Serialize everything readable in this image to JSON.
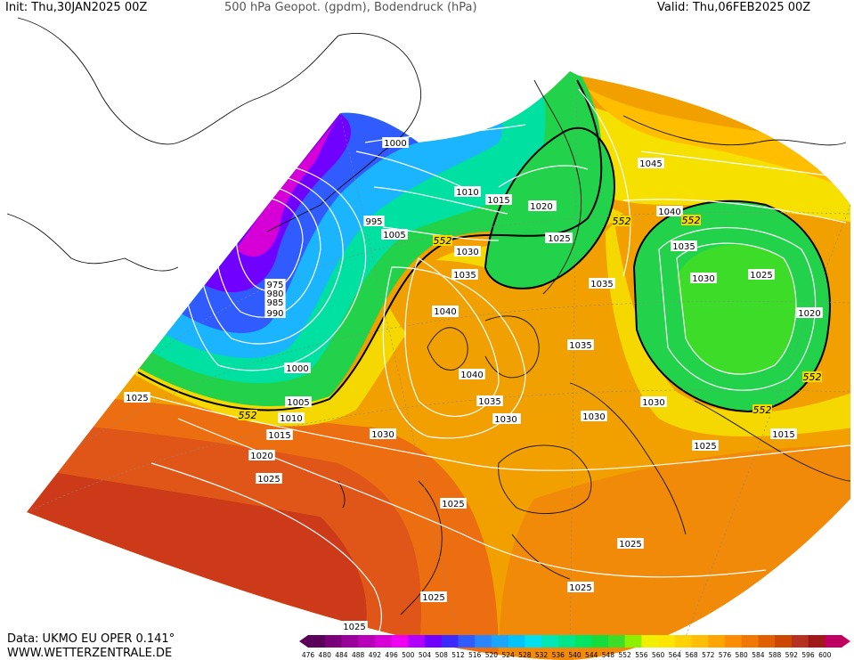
{
  "header": {
    "init": "Init: Thu,30JAN2025 00Z",
    "title": "500 hPa Geopot. (gpdm), Bodendruck (hPa)",
    "valid": "Valid: Thu,06FEB2025 00Z"
  },
  "footer": {
    "data_source": "Data: UKMO EU OPER 0.141°",
    "website": "WWW.WETTERZENTRALE.DE"
  },
  "colorbar": {
    "labels": [
      "476",
      "480",
      "484",
      "488",
      "492",
      "496",
      "500",
      "504",
      "508",
      "512",
      "516",
      "520",
      "524",
      "528",
      "532",
      "536",
      "540",
      "544",
      "548",
      "552",
      "556",
      "560",
      "564",
      "568",
      "572",
      "576",
      "580",
      "584",
      "588",
      "592",
      "596",
      "600"
    ],
    "colors": [
      "#5a005a",
      "#7a007a",
      "#990099",
      "#b800b8",
      "#d600d6",
      "#f000f0",
      "#b000ff",
      "#7000ff",
      "#3b2bff",
      "#2f5bff",
      "#2a86ff",
      "#1aa5ff",
      "#00c3ff",
      "#00e0f0",
      "#00e6b4",
      "#00e68c",
      "#00e664",
      "#14dc3c",
      "#3cdc28",
      "#8cf000",
      "#f0f000",
      "#ffe600",
      "#ffd200",
      "#ffbe00",
      "#ffa500",
      "#ff8c00",
      "#f07800",
      "#e06000",
      "#cc4800",
      "#b83020",
      "#a01818",
      "#c00060"
    ]
  },
  "isobar_labels": [
    {
      "text": "1000"
    },
    {
      "text": "995"
    },
    {
      "text": "1005"
    },
    {
      "text": "1010"
    },
    {
      "text": "1015"
    },
    {
      "text": "1020"
    },
    {
      "text": "1025"
    },
    {
      "text": "1030"
    },
    {
      "text": "1035"
    },
    {
      "text": "1040"
    },
    {
      "text": "1045"
    },
    {
      "text": "1040"
    },
    {
      "text": "1035"
    },
    {
      "text": "1030"
    },
    {
      "text": "1025"
    },
    {
      "text": "1020"
    },
    {
      "text": "1035"
    },
    {
      "text": "1035"
    },
    {
      "text": "1030"
    },
    {
      "text": "1040"
    },
    {
      "text": "1040"
    },
    {
      "text": "1035"
    },
    {
      "text": "1030"
    },
    {
      "text": "1030"
    },
    {
      "text": "1030"
    },
    {
      "text": "1025"
    },
    {
      "text": "1015"
    },
    {
      "text": "1025"
    },
    {
      "text": "1025"
    },
    {
      "text": "1025"
    },
    {
      "text": "1025"
    },
    {
      "text": "1025"
    },
    {
      "text": "1030"
    },
    {
      "text": "1025"
    },
    {
      "text": "1020"
    },
    {
      "text": "1015"
    },
    {
      "text": "1010"
    },
    {
      "text": "1005"
    },
    {
      "text": "1000"
    },
    {
      "text": "990"
    },
    {
      "text": "985"
    },
    {
      "text": "980"
    },
    {
      "text": "975"
    },
    {
      "text": "1020"
    },
    {
      "text": "1025"
    },
    {
      "text": "1030"
    },
    {
      "text": "1025"
    }
  ],
  "height_labels": [
    "552",
    "552",
    "552",
    "552",
    "552",
    "552"
  ]
}
